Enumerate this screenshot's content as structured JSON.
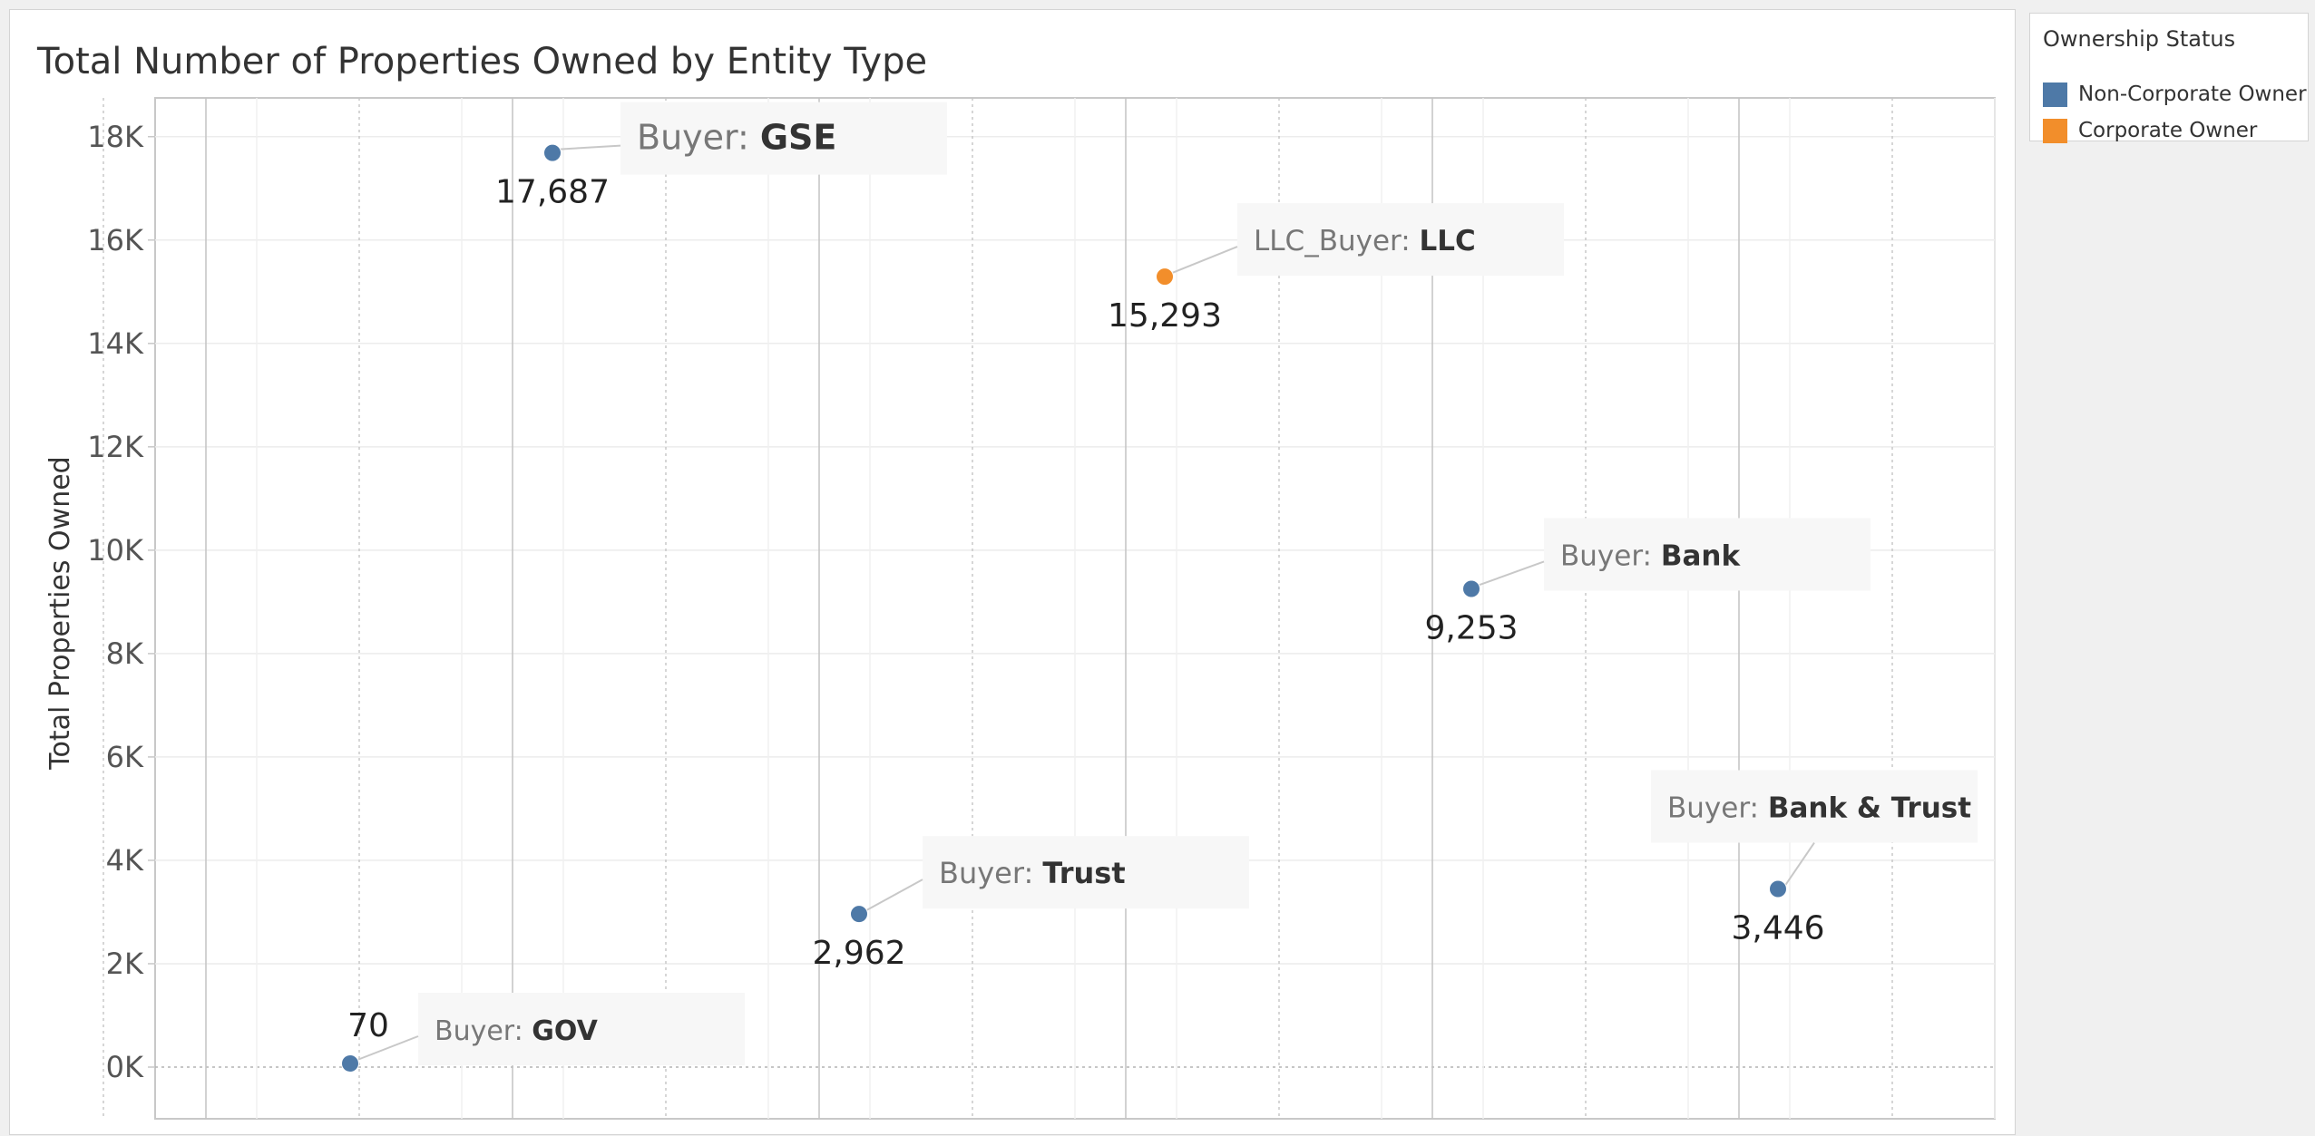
{
  "chart_data": {
    "type": "scatter",
    "title": "Total Number of Properties Owned by Entity Type",
    "ylabel": "Total Properties Owned",
    "xlabel": "",
    "ylim": [
      -1000,
      18750
    ],
    "y_ticks": [
      0,
      2000,
      4000,
      6000,
      8000,
      10000,
      12000,
      14000,
      16000,
      18000
    ],
    "y_tick_labels": [
      "0K",
      "2K",
      "4K",
      "6K",
      "8K",
      "10K",
      "12K",
      "14K",
      "16K",
      "18K"
    ],
    "grid": true,
    "legend": {
      "title": "Ownership Status",
      "placement": "right",
      "items": [
        {
          "label": "Non-Corporate Owner",
          "color": "#4e79a7"
        },
        {
          "label": "Corporate Owner",
          "color": "#f28e2b"
        }
      ]
    },
    "points": [
      {
        "prefix": "Buyer:",
        "entity": "GOV",
        "value": 70,
        "value_label": "70",
        "status": "Non-Corporate Owner",
        "color": "#4e79a7"
      },
      {
        "prefix": "Buyer:",
        "entity": "GSE",
        "value": 17687,
        "value_label": "17,687",
        "status": "Non-Corporate Owner",
        "color": "#4e79a7"
      },
      {
        "prefix": "Buyer:",
        "entity": "Trust",
        "value": 2962,
        "value_label": "2,962",
        "status": "Non-Corporate Owner",
        "color": "#4e79a7"
      },
      {
        "prefix": "LLC_Buyer:",
        "entity": "LLC",
        "value": 15293,
        "value_label": "15,293",
        "status": "Corporate Owner",
        "color": "#f28e2b"
      },
      {
        "prefix": "Buyer:",
        "entity": "Bank",
        "value": 9253,
        "value_label": "9,253",
        "status": "Non-Corporate Owner",
        "color": "#4e79a7"
      },
      {
        "prefix": "Buyer:",
        "entity": "Bank & Trust",
        "value": 3446,
        "value_label": "3,446",
        "status": "Non-Corporate Owner",
        "color": "#4e79a7"
      }
    ]
  }
}
